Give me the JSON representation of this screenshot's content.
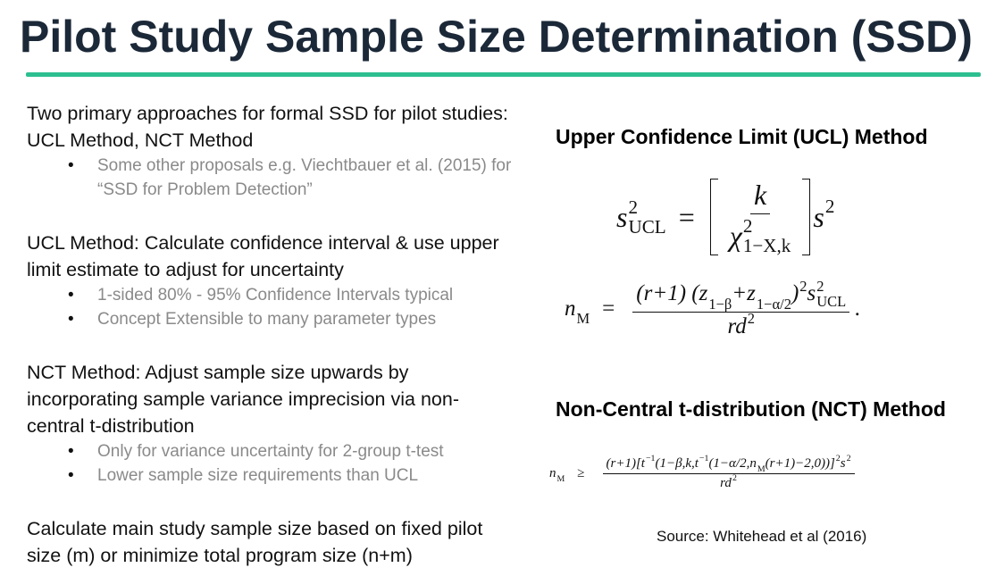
{
  "title": "Pilot Study Sample Size Determination (SSD)",
  "left": {
    "sections": [
      {
        "text": "Two primary approaches for formal SSD for pilot studies: UCL Method, NCT Method",
        "bullets": [
          "Some other proposals e.g. Viechtbauer et al. (2015) for “SSD for Problem Detection”"
        ]
      },
      {
        "text": "UCL Method: Calculate confidence interval & use upper limit estimate to adjust for uncertainty",
        "bullets": [
          "1-sided 80% - 95% Confidence Intervals typical",
          "Concept Extensible to many parameter types"
        ]
      },
      {
        "text": "NCT Method: Adjust sample size upwards by incorporating sample variance imprecision via non-central t-distribution",
        "bullets": [
          "Only for variance uncertainty for 2-group t-test",
          "Lower sample size requirements than UCL"
        ]
      },
      {
        "text": "Calculate main study sample size based on fixed pilot size (m) or minimize total program size (n+m)",
        "bullets": []
      }
    ]
  },
  "right": {
    "ucl_heading": "Upper Confidence Limit (UCL) Method",
    "ucl_formula_1": {
      "lhs": [
        {
          "text": "s",
          "sup": "2",
          "sub": "UCL"
        }
      ],
      "rel": "=",
      "num": [
        {
          "text": "k"
        }
      ],
      "den": [
        {
          "text": "χ",
          "sup": "2",
          "sub": "1−X,k"
        }
      ],
      "after": [
        {
          "text": "s",
          "sup": "2"
        }
      ]
    },
    "ucl_formula_2": {
      "lhs": [
        {
          "text": "n",
          "sub": "M"
        }
      ],
      "rel": "=",
      "num": [
        {
          "text": "(r+1) (z",
          "sub": "1−β"
        },
        {
          "text": "+z",
          "sub": "1−α/2"
        },
        {
          "text": ")",
          "sup": "2"
        },
        {
          "text": "s",
          "sup": "2",
          "sub": "UCL"
        }
      ],
      "den": [
        {
          "text": "rd",
          "sup": "2"
        }
      ],
      "after": [
        {
          "text": "."
        }
      ]
    },
    "nct_heading": "Non-Central t-distribution (NCT) Method",
    "nct_formula": {
      "lhs": [
        {
          "text": "n",
          "sub": "M"
        }
      ],
      "rel": "≥",
      "num": [
        {
          "text": "(r+1)[t",
          "sup": "−1"
        },
        {
          "text": "(1−β,k,t",
          "sup": "−1"
        },
        {
          "text": "(1−α/2,n",
          "sub": "M"
        },
        {
          "text": "(r+1)−2,0))]",
          "sup": "2"
        },
        {
          "text": "s",
          "sup": "2"
        }
      ],
      "den": [
        {
          "text": "rd",
          "sup": "2"
        }
      ],
      "after": []
    },
    "source": "Source: Whitehead et al (2016)"
  }
}
